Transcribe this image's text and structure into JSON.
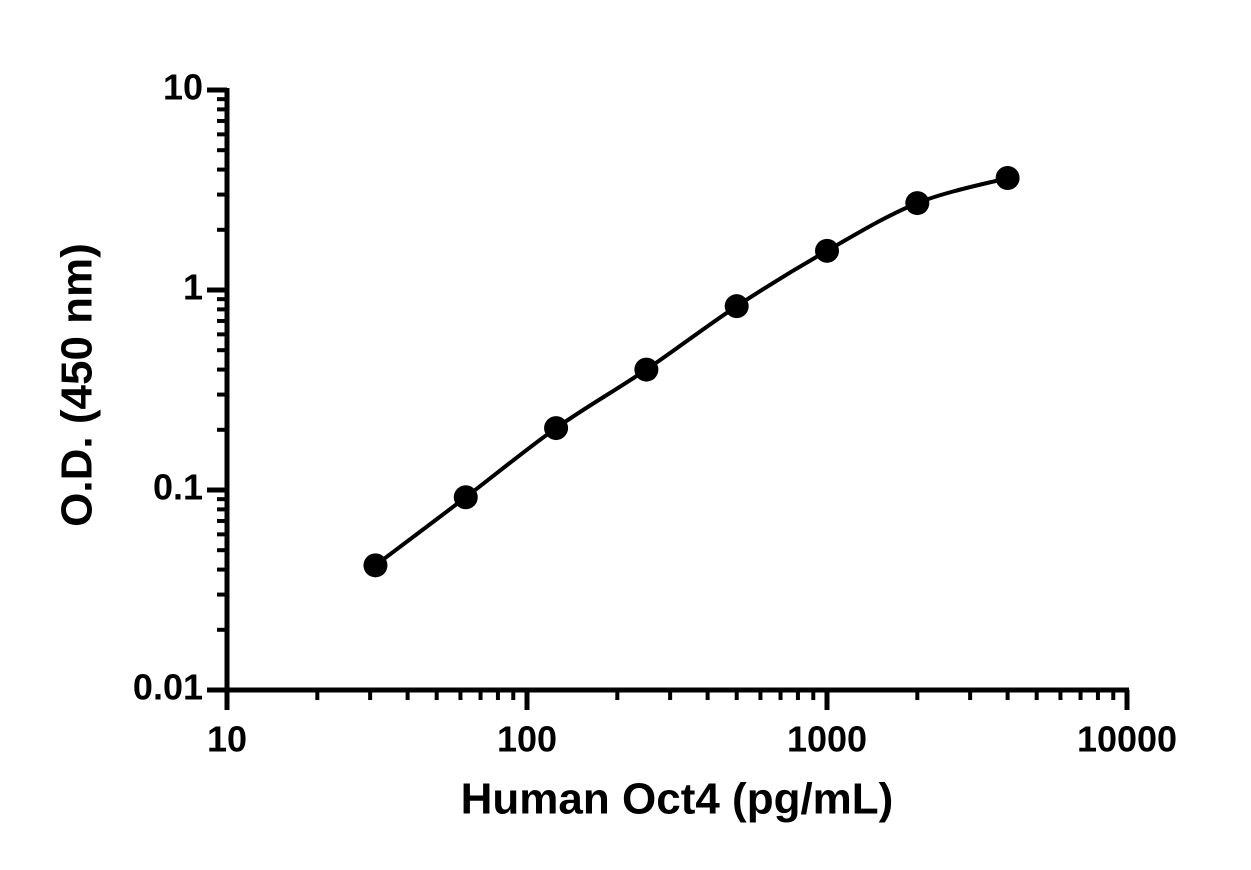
{
  "chart_data": {
    "type": "scatter",
    "x_label": "Human Oct4 (pg/mL)",
    "y_label": "O.D. (450 nm)",
    "x_log": true,
    "y_log": true,
    "xlim": [
      10,
      10000
    ],
    "ylim": [
      0.01,
      10
    ],
    "xticks": [
      10,
      100,
      1000,
      10000
    ],
    "yticks": [
      0.01,
      0.1,
      1,
      10
    ],
    "xminorticks": [
      20,
      30,
      40,
      50,
      60,
      70,
      80,
      90,
      200,
      300,
      400,
      500,
      600,
      700,
      800,
      900,
      2000,
      3000,
      4000,
      5000,
      6000,
      7000,
      8000,
      9000
    ],
    "yminorticks": [
      0.02,
      0.03,
      0.04,
      0.05,
      0.06,
      0.07,
      0.08,
      0.09,
      0.2,
      0.3,
      0.4,
      0.5,
      0.6,
      0.7,
      0.8,
      0.9,
      2,
      3,
      4,
      5,
      6,
      7,
      8,
      9
    ],
    "fit_line": true,
    "color": "#000000",
    "x": [
      31.25,
      62.5,
      125,
      250,
      500,
      1000,
      2000,
      4000
    ],
    "values": [
      0.042,
      0.092,
      0.204,
      0.4,
      0.83,
      1.57,
      2.72,
      3.63
    ]
  }
}
